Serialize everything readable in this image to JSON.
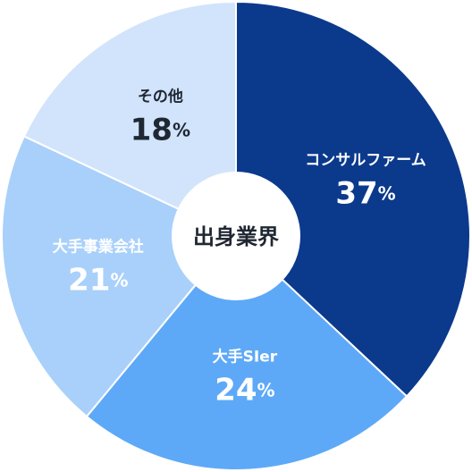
{
  "chart_data": {
    "type": "donut",
    "center_label": "出身業界",
    "categories": [
      "コンサルファーム",
      "大手SIer",
      "大手事業会社",
      "その他"
    ],
    "values": [
      37,
      24,
      21,
      18
    ],
    "value_labels": [
      "37%",
      "24%",
      "21%",
      "18%"
    ],
    "colors": [
      "#0b3a8c",
      "#5ea9f7",
      "#a9d0fa",
      "#d1e4fb"
    ],
    "label_colors": [
      "#ffffff",
      "#ffffff",
      "#ffffff",
      "#1f2733"
    ]
  }
}
